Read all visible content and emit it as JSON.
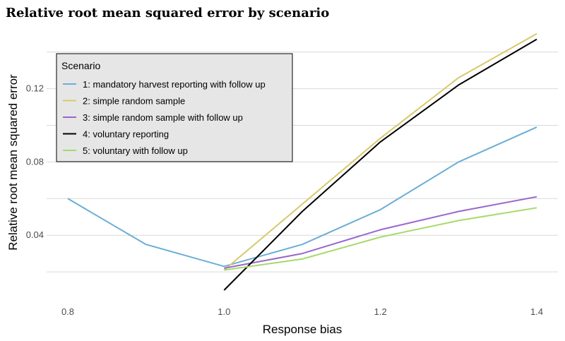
{
  "chart_data": {
    "type": "line",
    "title": "Relative root mean squared error by scenario",
    "xlabel": "Response bias",
    "ylabel": "Relative root mean squared error",
    "xlim": [
      0.8,
      1.4
    ],
    "ylim": [
      0.005,
      0.153
    ],
    "x_ticks": [
      0.8,
      1.0,
      1.2,
      1.4
    ],
    "x_tick_labels": [
      "0.8",
      "1.0",
      "1.2",
      "1.4"
    ],
    "y_ticks": [
      0.04,
      0.08,
      0.12
    ],
    "y_tick_labels": [
      "0.04",
      "0.08",
      "0.12"
    ],
    "y_minor_ticks": [
      0.02,
      0.06,
      0.1,
      0.14
    ],
    "grid": true,
    "legend_title": "Scenario",
    "legend_position": "top-left",
    "series": [
      {
        "name": "1: mandatory harvest reporting with follow up",
        "color": "#6baed6",
        "x": [
          0.8,
          0.9,
          1.0,
          1.1,
          1.2,
          1.3,
          1.4
        ],
        "y": [
          0.06,
          0.035,
          0.023,
          0.035,
          0.054,
          0.08,
          0.099
        ]
      },
      {
        "name": "2: simple random sample",
        "color": "#d9c96a",
        "x": [
          1.0,
          1.1,
          1.2,
          1.3,
          1.4
        ],
        "y": [
          0.021,
          0.057,
          0.093,
          0.126,
          0.15
        ]
      },
      {
        "name": "3: simple random sample with follow up",
        "color": "#9966cc",
        "x": [
          1.0,
          1.1,
          1.2,
          1.3,
          1.4
        ],
        "y": [
          0.022,
          0.03,
          0.043,
          0.053,
          0.061
        ]
      },
      {
        "name": "4: voluntary reporting",
        "color": "#000000",
        "x": [
          1.0,
          1.1,
          1.2,
          1.3,
          1.4
        ],
        "y": [
          0.01,
          0.053,
          0.091,
          0.122,
          0.147
        ]
      },
      {
        "name": "5: voluntary with follow up",
        "color": "#a6d96a",
        "x": [
          1.0,
          1.1,
          1.2,
          1.3,
          1.4
        ],
        "y": [
          0.021,
          0.027,
          0.039,
          0.048,
          0.055
        ]
      }
    ]
  }
}
